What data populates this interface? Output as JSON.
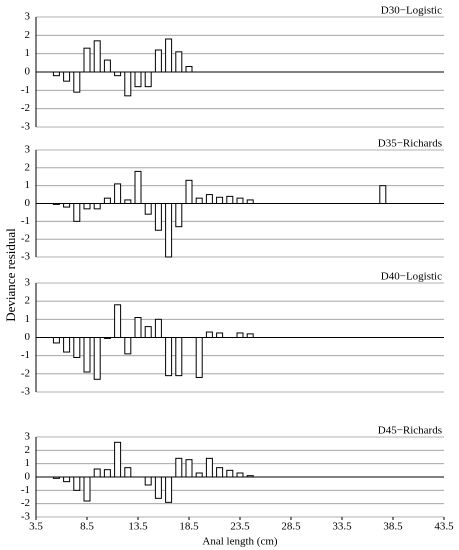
{
  "chart_data": [
    {
      "type": "bar",
      "title": "D30−Logistic",
      "ylabel": "Deviance residual",
      "x": [
        5.5,
        6.5,
        7.5,
        8.5,
        9.5,
        10.5,
        11.5,
        12.5,
        13.5,
        14.5,
        15.5,
        16.5,
        17.5,
        18.5
      ],
      "values": [
        -0.2,
        -0.5,
        -1.1,
        1.3,
        1.7,
        0.65,
        -0.2,
        -1.3,
        -0.8,
        -0.8,
        1.2,
        1.8,
        1.1,
        0.3
      ],
      "color": "#ffffff",
      "xlim": [
        3.5,
        43.5
      ],
      "ylim": [
        -3,
        3
      ],
      "yticks": [
        -3,
        -2,
        -1,
        0,
        1,
        2,
        3
      ],
      "grid": true
    },
    {
      "type": "bar",
      "title": "D35−Richards",
      "x": [
        5.5,
        6.5,
        7.5,
        8.5,
        9.5,
        10.5,
        11.5,
        12.5,
        13.5,
        14.5,
        15.5,
        16.5,
        17.5,
        18.5,
        19.5,
        20.5,
        21.5,
        22.5,
        23.5,
        24.5,
        37.5
      ],
      "values": [
        -0.05,
        -0.2,
        -1.0,
        -0.3,
        -0.3,
        0.3,
        1.1,
        0.2,
        1.8,
        -0.6,
        -1.5,
        -3.0,
        -1.3,
        1.3,
        0.3,
        0.5,
        0.35,
        0.4,
        0.3,
        0.2,
        1.0
      ],
      "color": "#ffffff",
      "xlim": [
        3.5,
        43.5
      ],
      "ylim": [
        -3,
        3
      ],
      "yticks": [
        -3,
        -2,
        -1,
        0,
        1,
        2,
        3
      ],
      "grid": true
    },
    {
      "type": "bar",
      "title": "D40−Logistic",
      "x": [
        5.5,
        6.5,
        7.5,
        8.5,
        9.5,
        10.5,
        11.5,
        12.5,
        13.5,
        14.5,
        15.5,
        16.5,
        17.5,
        19.5,
        20.5,
        21.5,
        23.5,
        24.5
      ],
      "values": [
        -0.3,
        -0.8,
        -1.1,
        -1.9,
        -2.3,
        -0.05,
        1.8,
        -0.9,
        1.1,
        0.6,
        1.0,
        -2.1,
        -2.1,
        -2.2,
        0.3,
        0.25,
        0.25,
        0.2
      ],
      "color": "#ffffff",
      "xlim": [
        3.5,
        43.5
      ],
      "ylim": [
        -3,
        3
      ],
      "yticks": [
        -3,
        -2,
        -1,
        0,
        1,
        2,
        3
      ],
      "grid": true
    },
    {
      "type": "bar",
      "title": "D45−Richards",
      "xlabel": "Anal length (cm)",
      "x": [
        5.5,
        6.5,
        7.5,
        8.5,
        9.5,
        10.5,
        11.5,
        12.5,
        14.5,
        15.5,
        16.5,
        17.5,
        18.5,
        19.5,
        20.5,
        21.5,
        22.5,
        23.5,
        24.5
      ],
      "values": [
        -0.1,
        -0.35,
        -1.0,
        -1.8,
        0.6,
        0.55,
        2.6,
        0.7,
        -0.6,
        -1.6,
        -1.9,
        1.4,
        1.3,
        0.3,
        1.4,
        0.7,
        0.5,
        0.3,
        0.1
      ],
      "color": "#ffffff",
      "xlim": [
        3.5,
        43.5
      ],
      "ylim": [
        -3,
        3
      ],
      "yticks": [
        -3,
        -2,
        -1,
        0,
        1,
        2,
        3
      ],
      "grid": true,
      "xticks": [
        3.5,
        8.5,
        13.5,
        18.5,
        23.5,
        28.5,
        33.5,
        38.5,
        43.5
      ]
    }
  ]
}
